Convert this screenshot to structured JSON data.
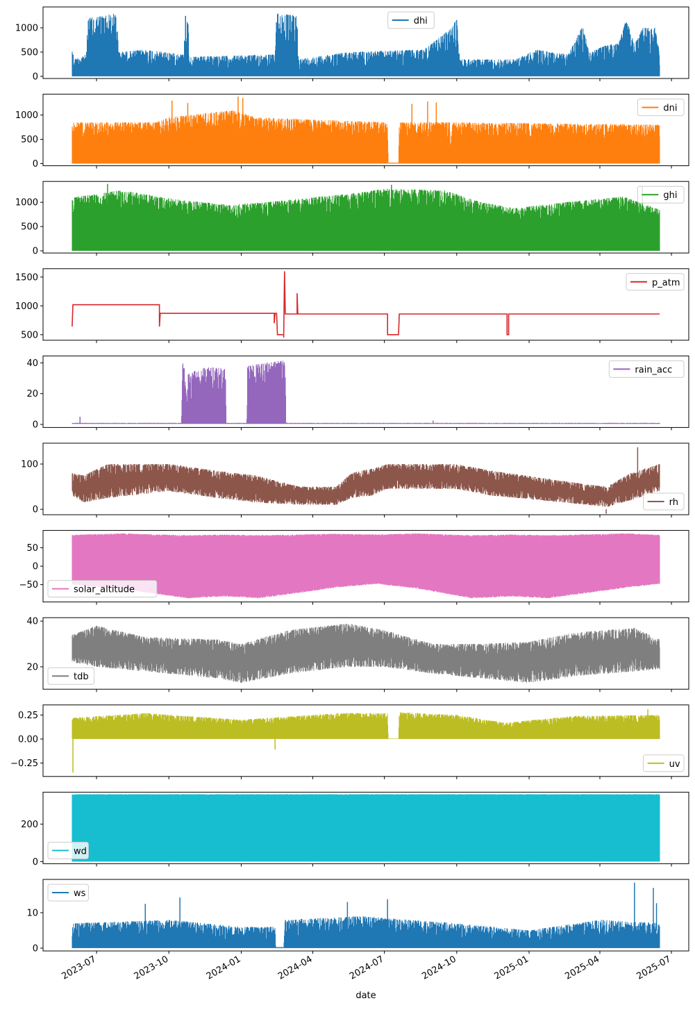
{
  "chart_data": {
    "type": "line",
    "layout": "11 stacked subplots sharing x axis",
    "xlabel": "date",
    "xlim": [
      "2023-04-24",
      "2025-07-23"
    ],
    "xticks": [
      "2023-07-01",
      "2023-10-01",
      "2024-01-01",
      "2024-04-01",
      "2024-07-01",
      "2024-10-01",
      "2025-01-01",
      "2025-04-01",
      "2025-07-01"
    ],
    "xticklabels": [
      "2023-07",
      "2023-10",
      "2024-01",
      "2024-04",
      "2024-07",
      "2024-10",
      "2025-01",
      "2025-04",
      "2025-07"
    ],
    "panels": [
      {
        "name": "dhi",
        "color": "#1f77b4",
        "legend": "upper center",
        "ylim": [
          -45,
          1430
        ],
        "yticks": [
          0,
          500,
          1000
        ],
        "yticklabels": [
          "0",
          "500",
          "1000"
        ],
        "envelope": [
          [
            "2023-05-31",
            0,
            700
          ],
          [
            "2023-06-02",
            0,
            350
          ],
          [
            "2023-06-18",
            0,
            450
          ],
          [
            "2023-06-20",
            0,
            1200
          ],
          [
            "2023-07-27",
            0,
            1300
          ],
          [
            "2023-07-29",
            0,
            500
          ],
          [
            "2023-09-01",
            0,
            550
          ],
          [
            "2023-10-20",
            0,
            450
          ],
          [
            "2023-10-22",
            0,
            1350
          ],
          [
            "2023-10-25",
            0,
            1350
          ],
          [
            "2023-10-27",
            0,
            400
          ],
          [
            "2024-02-13",
            0,
            450
          ],
          [
            "2024-02-15",
            0,
            1300
          ],
          [
            "2024-03-12",
            0,
            1250
          ],
          [
            "2024-03-14",
            0,
            350
          ],
          [
            "2024-05-15",
            0,
            500
          ],
          [
            "2024-08-20",
            0,
            550
          ],
          [
            "2024-09-25",
            0,
            1000
          ],
          [
            "2024-10-01",
            0,
            1200
          ],
          [
            "2024-10-05",
            0,
            350
          ],
          [
            "2024-12-15",
            0,
            350
          ],
          [
            "2025-01-10",
            0,
            550
          ],
          [
            "2025-02-20",
            0,
            450
          ],
          [
            "2025-03-10",
            0,
            1050
          ],
          [
            "2025-03-20",
            0,
            500
          ],
          [
            "2025-04-10",
            0,
            650
          ],
          [
            "2025-04-25",
            0,
            680
          ],
          [
            "2025-05-05",
            0,
            1200
          ],
          [
            "2025-05-15",
            0,
            650
          ],
          [
            "2025-05-25",
            0,
            1000
          ],
          [
            "2025-06-10",
            0,
            1000
          ],
          [
            "2025-06-16",
            0,
            500
          ]
        ],
        "spikes": []
      },
      {
        "name": "dni",
        "color": "#ff7f0e",
        "legend": "upper right",
        "ylim": [
          -45,
          1430
        ],
        "yticks": [
          0,
          500,
          1000
        ],
        "yticklabels": [
          "0",
          "500",
          "1000"
        ],
        "envelope": [
          [
            "2023-05-31",
            0,
            850
          ],
          [
            "2023-09-15",
            0,
            850
          ],
          [
            "2023-10-01",
            0,
            950
          ],
          [
            "2023-12-20",
            0,
            1100
          ],
          [
            "2024-01-20",
            0,
            950
          ],
          [
            "2024-07-05",
            0,
            850
          ],
          [
            "2024-07-06",
            0,
            20
          ],
          [
            "2024-07-19",
            0,
            20
          ],
          [
            "2024-07-20",
            0,
            850
          ],
          [
            "2024-09-22",
            0,
            850
          ],
          [
            "2024-09-23",
            0,
            250
          ],
          [
            "2024-09-25",
            0,
            850
          ],
          [
            "2025-06-16",
            0,
            800
          ]
        ],
        "spikes": [
          [
            "2023-10-05",
            1300
          ],
          [
            "2023-10-25",
            1250
          ],
          [
            "2023-12-28",
            1380
          ],
          [
            "2024-01-03",
            1350
          ],
          [
            "2024-08-05",
            1230
          ],
          [
            "2024-08-25",
            1280
          ],
          [
            "2024-09-05",
            1260
          ]
        ]
      },
      {
        "name": "ghi",
        "color": "#2ca02c",
        "legend": "upper right",
        "ylim": [
          -45,
          1430
        ],
        "yticks": [
          0,
          500,
          1000
        ],
        "yticklabels": [
          "0",
          "500",
          "1000"
        ],
        "envelope": [
          [
            "2023-05-31",
            0,
            1100
          ],
          [
            "2023-08-01",
            0,
            1250
          ],
          [
            "2023-10-15",
            0,
            1050
          ],
          [
            "2023-12-15",
            0,
            950
          ],
          [
            "2024-02-01",
            0,
            1000
          ],
          [
            "2024-04-01",
            0,
            1100
          ],
          [
            "2024-06-01",
            0,
            1200
          ],
          [
            "2024-07-01",
            0,
            1280
          ],
          [
            "2024-09-15",
            0,
            1250
          ],
          [
            "2024-11-01",
            0,
            1000
          ],
          [
            "2024-12-15",
            0,
            880
          ],
          [
            "2025-02-15",
            0,
            1000
          ],
          [
            "2025-05-01",
            0,
            1120
          ],
          [
            "2025-06-16",
            0,
            850
          ]
        ],
        "spikes": [
          [
            "2023-07-15",
            1380
          ],
          [
            "2024-07-10",
            1360
          ],
          [
            "2025-05-25",
            1330
          ]
        ]
      },
      {
        "name": "p_atm",
        "color": "#d62728",
        "legend": "upper right",
        "ylim": [
          404,
          1645
        ],
        "yticks": [
          500,
          1000,
          1500
        ],
        "yticklabels": [
          "500",
          "1000",
          "1500"
        ],
        "line": [
          [
            "2023-05-31",
            640
          ],
          [
            "2023-06-01",
            1020
          ],
          [
            "2023-09-19",
            1020
          ],
          [
            "2023-09-19",
            640
          ],
          [
            "2023-09-20",
            870
          ],
          [
            "2024-02-12",
            870
          ],
          [
            "2024-02-12",
            700
          ],
          [
            "2024-02-13",
            870
          ],
          [
            "2024-02-15",
            870
          ],
          [
            "2024-02-16",
            500
          ],
          [
            "2024-02-24",
            500
          ],
          [
            "2024-02-24",
            450
          ],
          [
            "2024-02-25",
            1600
          ],
          [
            "2024-02-26",
            860
          ],
          [
            "2024-03-12",
            860
          ],
          [
            "2024-03-12",
            1220
          ],
          [
            "2024-03-13",
            860
          ],
          [
            "2024-07-05",
            860
          ],
          [
            "2024-07-05",
            500
          ],
          [
            "2024-07-19",
            500
          ],
          [
            "2024-07-20",
            860
          ],
          [
            "2024-12-04",
            860
          ],
          [
            "2024-12-04",
            500
          ],
          [
            "2024-12-06",
            500
          ],
          [
            "2024-12-06",
            860
          ],
          [
            "2025-06-16",
            860
          ]
        ]
      },
      {
        "name": "rain_acc",
        "color": "#9467bd",
        "legend": "upper right",
        "ylim": [
          -2,
          44.5
        ],
        "yticks": [
          0,
          20,
          40
        ],
        "yticklabels": [
          "0",
          "20",
          "40"
        ],
        "envelope": [
          [
            "2023-05-31",
            0.3,
            1
          ],
          [
            "2023-10-17",
            0.3,
            1
          ],
          [
            "2023-10-18",
            0.3,
            40
          ],
          [
            "2023-10-20",
            0.3,
            42
          ],
          [
            "2023-10-24",
            0.3,
            14
          ],
          [
            "2023-10-25",
            0.3,
            33
          ],
          [
            "2023-11-15",
            0.3,
            37
          ],
          [
            "2023-12-12",
            0.3,
            37
          ],
          [
            "2023-12-13",
            0.3,
            1
          ],
          [
            "2024-01-08",
            0.3,
            1
          ],
          [
            "2024-01-09",
            0.3,
            38
          ],
          [
            "2024-02-26",
            0.3,
            42
          ],
          [
            "2024-02-27",
            0.3,
            1
          ],
          [
            "2025-06-16",
            0.3,
            1
          ]
        ],
        "spikes": [
          [
            "2023-06-10",
            5
          ],
          [
            "2024-09-01",
            2.5
          ]
        ]
      },
      {
        "name": "rh",
        "color": "#8c564b",
        "legend": "lower right",
        "ylim": [
          -12,
          146
        ],
        "yticks": [
          0,
          100
        ],
        "yticklabels": [
          "0",
          "100"
        ],
        "envelope": [
          [
            "2023-05-31",
            30,
            80
          ],
          [
            "2023-06-15",
            15,
            75
          ],
          [
            "2023-07-15",
            25,
            100
          ],
          [
            "2023-10-01",
            40,
            100
          ],
          [
            "2023-12-01",
            25,
            85
          ],
          [
            "2024-01-20",
            15,
            75
          ],
          [
            "2024-03-15",
            10,
            50
          ],
          [
            "2024-05-01",
            10,
            50
          ],
          [
            "2024-05-20",
            25,
            80
          ],
          [
            "2024-06-15",
            30,
            90
          ],
          [
            "2024-07-05",
            45,
            100
          ],
          [
            "2024-09-30",
            45,
            100
          ],
          [
            "2024-11-15",
            30,
            85
          ],
          [
            "2025-01-15",
            20,
            70
          ],
          [
            "2025-03-15",
            10,
            55
          ],
          [
            "2025-04-10",
            5,
            50
          ],
          [
            "2025-05-10",
            20,
            80
          ],
          [
            "2025-06-16",
            40,
            100
          ]
        ],
        "spikes": [
          [
            "2025-05-19",
            137
          ],
          [
            "2025-04-09",
            -10
          ]
        ]
      },
      {
        "name": "solar_altitude",
        "color": "#e377c2",
        "legend": "lower left",
        "ylim": [
          -97,
          97
        ],
        "yticks": [
          -50,
          0,
          50
        ],
        "yticklabels": [
          "−50",
          "0",
          "50"
        ],
        "envelope": [
          [
            "2023-05-31",
            -50,
            85
          ],
          [
            "2023-08-01",
            -62,
            89
          ],
          [
            "2023-10-25",
            -87,
            84
          ],
          [
            "2023-12-10",
            -82,
            86
          ],
          [
            "2024-01-25",
            -87,
            84
          ],
          [
            "2024-05-01",
            -58,
            88
          ],
          [
            "2024-06-21",
            -48,
            86
          ],
          [
            "2024-08-10",
            -60,
            89
          ],
          [
            "2024-10-20",
            -87,
            84
          ],
          [
            "2024-12-10",
            -82,
            86
          ],
          [
            "2025-01-25",
            -87,
            84
          ],
          [
            "2025-05-05",
            -58,
            89
          ],
          [
            "2025-06-16",
            -48,
            85
          ]
        ],
        "spikes": []
      },
      {
        "name": "tdb",
        "color": "#7f7f7f",
        "legend": "lower left",
        "ylim": [
          10.2,
          41.5
        ],
        "yticks": [
          20,
          40
        ],
        "yticklabels": [
          "20",
          "40"
        ],
        "envelope": [
          [
            "2023-05-31",
            22,
            34
          ],
          [
            "2023-07-01",
            20,
            38
          ],
          [
            "2023-09-01",
            18,
            33
          ],
          [
            "2023-12-01",
            15,
            32
          ],
          [
            "2024-01-01",
            13,
            30
          ],
          [
            "2024-03-01",
            17,
            36
          ],
          [
            "2024-05-15",
            20,
            39
          ],
          [
            "2024-07-01",
            20,
            36
          ],
          [
            "2024-09-01",
            17,
            30
          ],
          [
            "2024-11-01",
            15,
            30
          ],
          [
            "2025-01-01",
            13,
            31
          ],
          [
            "2025-03-01",
            16,
            35
          ],
          [
            "2025-05-15",
            18,
            37
          ],
          [
            "2025-06-16",
            19,
            32
          ]
        ],
        "spikes": []
      },
      {
        "name": "uv",
        "color": "#bcbd22",
        "legend": "lower right",
        "ylim": [
          -0.39,
          0.355
        ],
        "yticks": [
          -0.25,
          0,
          0.25
        ],
        "yticklabels": [
          "−0.25",
          "0.00",
          "0.25"
        ],
        "envelope": [
          [
            "2023-05-31",
            0,
            0.22
          ],
          [
            "2023-09-01",
            0,
            0.27
          ],
          [
            "2024-01-01",
            0,
            0.2
          ],
          [
            "2024-05-01",
            0,
            0.27
          ],
          [
            "2024-07-05",
            0,
            0.27
          ],
          [
            "2024-07-06",
            0,
            0.005
          ],
          [
            "2024-07-19",
            0,
            0.005
          ],
          [
            "2024-07-20",
            0,
            0.28
          ],
          [
            "2024-10-01",
            0,
            0.25
          ],
          [
            "2024-12-01",
            0,
            0.17
          ],
          [
            "2025-03-01",
            0,
            0.24
          ],
          [
            "2025-06-16",
            0,
            0.25
          ]
        ],
        "spikes": [
          [
            "2023-06-01",
            -0.35
          ],
          [
            "2024-02-13",
            -0.11
          ],
          [
            "2025-06-01",
            0.31
          ]
        ]
      },
      {
        "name": "wd",
        "color": "#17becf",
        "legend": "lower left",
        "ylim": [
          -11,
          370
        ],
        "yticks": [
          0,
          200
        ],
        "yticklabels": [
          "0",
          "200"
        ],
        "envelope": [
          [
            "2023-05-31",
            0,
            359
          ],
          [
            "2025-06-16",
            0,
            359
          ]
        ],
        "spikes": []
      },
      {
        "name": "ws",
        "color": "#1f77b4",
        "legend": "upper left",
        "ylim": [
          -0.8,
          19.4
        ],
        "yticks": [
          0,
          10
        ],
        "yticklabels": [
          "0",
          "10"
        ],
        "envelope": [
          [
            "2023-05-31",
            0,
            7
          ],
          [
            "2023-10-01",
            0,
            8
          ],
          [
            "2024-01-01",
            0,
            6
          ],
          [
            "2024-02-13",
            0,
            6
          ],
          [
            "2024-02-14",
            0,
            0.3
          ],
          [
            "2024-02-24",
            0,
            0.3
          ],
          [
            "2024-02-25",
            0,
            8
          ],
          [
            "2024-06-01",
            0,
            9
          ],
          [
            "2024-10-01",
            0,
            7
          ],
          [
            "2025-01-01",
            0,
            5
          ],
          [
            "2025-04-01",
            0,
            8
          ],
          [
            "2025-06-16",
            0,
            7
          ]
        ],
        "spikes": [
          [
            "2023-09-01",
            12.5
          ],
          [
            "2023-10-15",
            14.3
          ],
          [
            "2024-05-15",
            13
          ],
          [
            "2024-07-05",
            13.8
          ],
          [
            "2025-05-15",
            18.5
          ],
          [
            "2025-06-08",
            17
          ],
          [
            "2025-06-12",
            12.7
          ]
        ]
      }
    ]
  }
}
